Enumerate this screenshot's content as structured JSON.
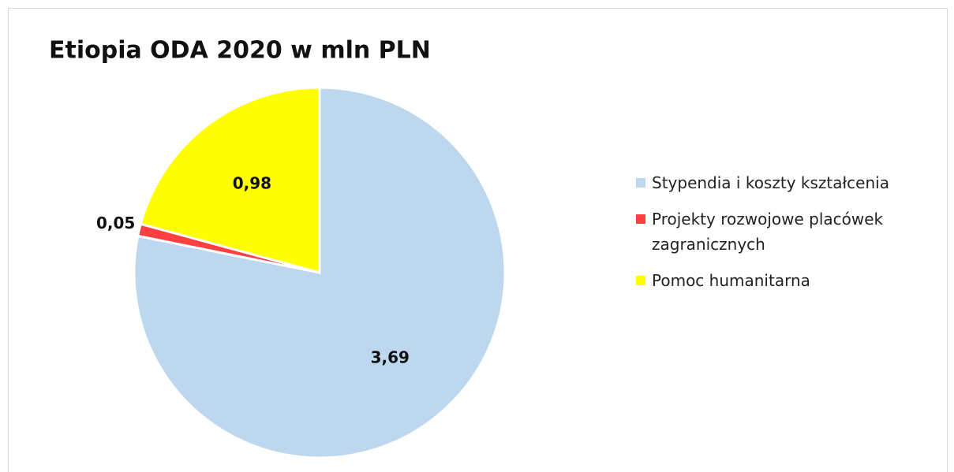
{
  "chart_data": {
    "type": "pie",
    "title": "Etiopia ODA 2020 w mln PLN",
    "categories": [
      "Stypendia i koszty kształcenia",
      "Projekty rozwojowe placówek zagranicznych",
      "Pomoc humanitarna"
    ],
    "values": [
      3.69,
      0.05,
      0.98
    ],
    "value_labels": [
      "3,69",
      "0,05",
      "0,98"
    ],
    "colors": [
      "#bdd7ee",
      "#ff4040",
      "#ffff00"
    ],
    "legend": "right"
  }
}
